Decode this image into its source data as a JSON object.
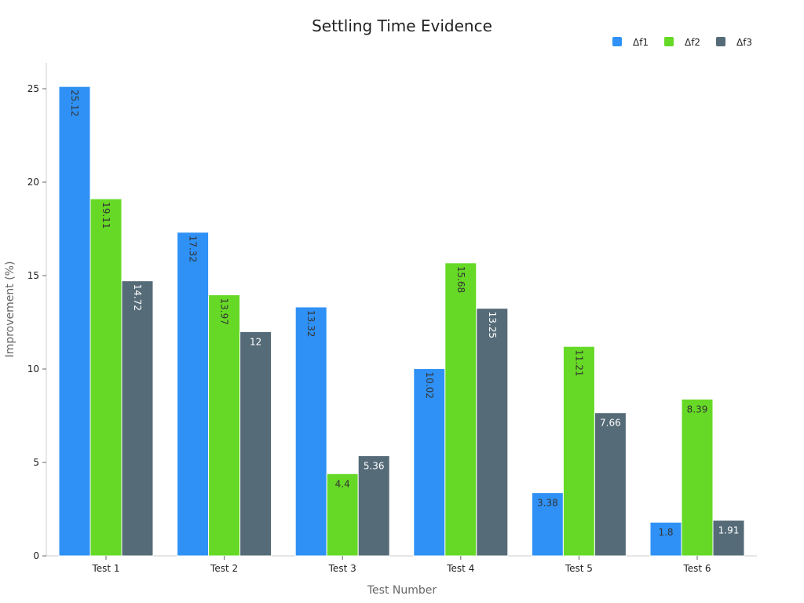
{
  "chart_data": {
    "type": "bar",
    "title": "Settling Time Evidence",
    "xlabel": "Test Number",
    "ylabel": "Improvement (%)",
    "categories": [
      "Test 1",
      "Test 2",
      "Test 3",
      "Test 4",
      "Test 5",
      "Test 6"
    ],
    "ylim": [
      0,
      26.4
    ],
    "yticks": [
      0,
      5,
      10,
      15,
      20,
      25
    ],
    "grid": false,
    "legend_position": "top-right",
    "series": [
      {
        "name": "Δf1",
        "color": "#2f91f5",
        "label_color": "#333333",
        "values": [
          25.12,
          17.32,
          13.32,
          10.02,
          3.38,
          1.8
        ]
      },
      {
        "name": "Δf2",
        "color": "#66d926",
        "label_color": "#333333",
        "values": [
          19.11,
          13.97,
          4.4,
          15.68,
          11.21,
          8.39
        ]
      },
      {
        "name": "Δf3",
        "color": "#556b78",
        "label_color": "#ffffff",
        "values": [
          14.72,
          12,
          5.36,
          13.25,
          7.66,
          1.91
        ]
      }
    ]
  }
}
